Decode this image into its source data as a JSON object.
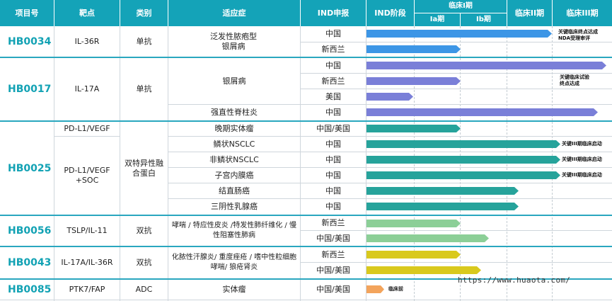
{
  "headers": {
    "project": "项目号",
    "target": "靶点",
    "category": "类别",
    "indication": "适应症",
    "ind": "IND申报",
    "ind_stage": "IND阶段",
    "phase1": "临床I期",
    "phase1a": "Ia期",
    "phase1b": "Ib期",
    "phase2": "临床II期",
    "phase3": "临床III期"
  },
  "projects": [
    {
      "code": "HB0034",
      "target": "IL-36R",
      "category": "单抗"
    },
    {
      "code": "HB0017",
      "target": "IL-17A",
      "category": "单抗"
    },
    {
      "code": "HB0025",
      "target_a": "PD-L1/VEGF",
      "target_b": "PD-L1/VEGF +SOC",
      "category": "双特异性融合蛋白"
    },
    {
      "code": "HB0056",
      "target": "TSLP/IL-11",
      "category": "双抗"
    },
    {
      "code": "HB0043",
      "target": "IL-17A/IL-36R",
      "category": "双抗"
    },
    {
      "code": "HB0085",
      "target": "PTK7/FAP",
      "category": "ADC"
    }
  ],
  "indications": {
    "gpp": "泛发性脓疱型银屑病",
    "psoriasis": "银屑病",
    "as": "强直性脊柱炎",
    "solid_late": "晚期实体瘤",
    "sq_nsclc": "鳞状NSCLC",
    "nsq_nsclc": "非鳞状NSCLC",
    "endometrial": "子宫内膜癌",
    "crc": "结直肠癌",
    "tnbc": "三阴性乳腺癌",
    "resp": "哮喘 / 特应性皮炎 /特发性肺纤维化 / 慢性阻塞性肺病",
    "hs": "化脓性汗腺炎/ 重度痤疮 / 嗜中性粒细胞哮喘/ 狼疮肾炎",
    "solid": "实体瘤"
  },
  "regions": {
    "china": "中国",
    "nz": "新西兰",
    "us": "美国",
    "china_us": "中国/美国"
  },
  "notes": {
    "hb0034": "关键临床终点达成 NDA受理审评",
    "hb0017": "关键临床试验 终点达成",
    "phase3_start": "关键III期临床启动",
    "preclinical": "临床前"
  },
  "watermark": "https://www.huaota.com/",
  "colors": {
    "header": "#14a3b8",
    "code": "#12a2b4",
    "blue": "#3d96e6",
    "purple": "#7a7fd8",
    "teal": "#26a39b",
    "green": "#8ccf97",
    "yellow": "#d9c91d",
    "orange": "#f3a45c"
  },
  "pipeline_rows": [
    {
      "project": "HB0034",
      "region": "中国",
      "phase_reached": "临床III期",
      "color": "blue"
    },
    {
      "project": "HB0034",
      "region": "新西兰",
      "phase_reached": "Ib期",
      "color": "blue"
    },
    {
      "project": "HB0017",
      "region": "中国",
      "phase_reached": "临床III期",
      "color": "purple"
    },
    {
      "project": "HB0017",
      "region": "新西兰",
      "phase_reached": "Ib期",
      "color": "purple"
    },
    {
      "project": "HB0017",
      "region": "美国",
      "phase_reached": "Ia期",
      "color": "purple"
    },
    {
      "project": "HB0017",
      "region": "中国",
      "phase_reached": "临床III期",
      "color": "purple"
    },
    {
      "project": "HB0025",
      "region": "中国/美国",
      "phase_reached": "Ib期",
      "color": "teal"
    },
    {
      "project": "HB0025",
      "region": "中国",
      "phase_reached": "临床III期",
      "color": "teal"
    },
    {
      "project": "HB0025",
      "region": "中国",
      "phase_reached": "临床III期",
      "color": "teal"
    },
    {
      "project": "HB0025",
      "region": "中国",
      "phase_reached": "临床III期",
      "color": "teal"
    },
    {
      "project": "HB0025",
      "region": "中国",
      "phase_reached": "临床II期",
      "color": "teal"
    },
    {
      "project": "HB0025",
      "region": "中国",
      "phase_reached": "临床II期",
      "color": "teal"
    },
    {
      "project": "HB0056",
      "region": "新西兰",
      "phase_reached": "Ib期",
      "color": "green"
    },
    {
      "project": "HB0056",
      "region": "中国/美国",
      "phase_reached": "临床II期",
      "color": "green"
    },
    {
      "project": "HB0043",
      "region": "新西兰",
      "phase_reached": "Ib期",
      "color": "yellow"
    },
    {
      "project": "HB0043",
      "region": "中国/美国",
      "phase_reached": "临床II期",
      "color": "yellow"
    },
    {
      "project": "HB0085",
      "region": "中国/美国",
      "phase_reached": "临床前",
      "color": "orange"
    }
  ]
}
